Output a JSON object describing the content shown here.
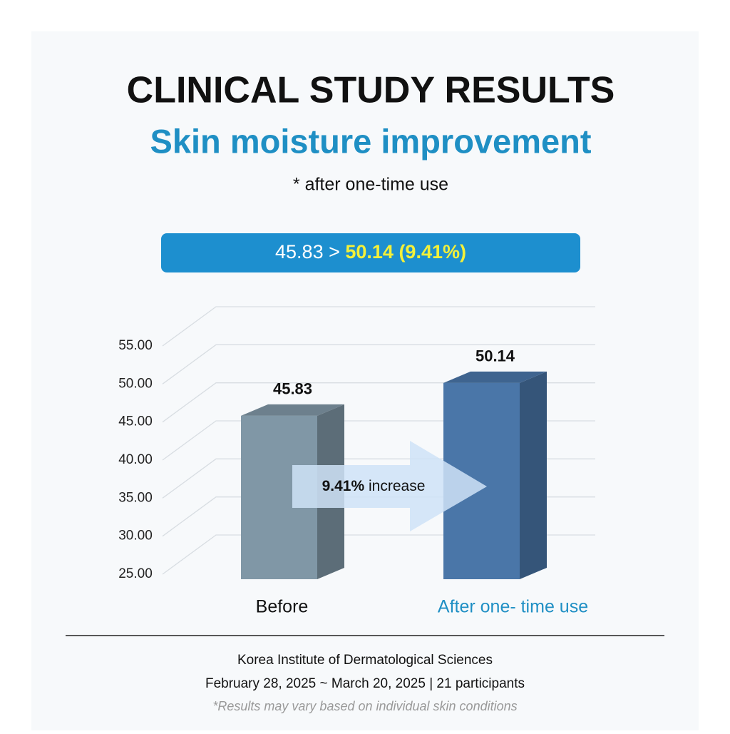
{
  "header": {
    "title": "CLINICAL STUDY RESULTS",
    "subtitle": "Skin moisture improvement",
    "note": "* after one-time use"
  },
  "banner": {
    "from": "45.83 >",
    "to": "50.14 (9.41%)"
  },
  "chart_data": {
    "type": "bar3d",
    "categories": [
      "Before",
      "After one- time use"
    ],
    "category_label_colors": [
      "#111111",
      "#1f8fc4"
    ],
    "values": [
      45.83,
      50.14
    ],
    "colors": [
      "#8097a6",
      "#4a76a8"
    ],
    "ylim": [
      25,
      55
    ],
    "yticks": [
      {
        "value": 25,
        "label": "25.00"
      },
      {
        "value": 30,
        "label": "30.00"
      },
      {
        "value": 35,
        "label": "35.00"
      },
      {
        "value": 40,
        "label": "40.00"
      },
      {
        "value": 45,
        "label": "45.00"
      },
      {
        "value": 50,
        "label": "50.00"
      },
      {
        "value": 55,
        "label": "55.00"
      }
    ],
    "grid": true,
    "annotation": {
      "emphasis": "9.41%",
      "text": "increase"
    }
  },
  "footer": {
    "source": "Korea Institute of Dermatological Sciences",
    "period": "February 28, 2025 ~ March 20, 2025 | 21 participants",
    "disclaimer": "*Results may vary based on individual skin conditions"
  }
}
